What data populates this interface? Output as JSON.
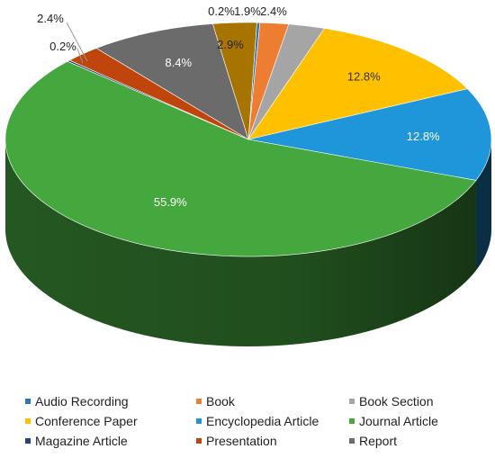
{
  "chart_data": {
    "type": "pie",
    "style": "3d",
    "slices": [
      {
        "name": "Audio Recording",
        "value": 0.2,
        "label": "0.2%",
        "color": "#2e75b6"
      },
      {
        "name": "Book",
        "value": 1.9,
        "label": "1.9%",
        "color": "#ed7d31"
      },
      {
        "name": "Book Section",
        "value": 2.4,
        "label": "2.4%",
        "color": "#a5a5a5"
      },
      {
        "name": "Conference Paper",
        "value": 12.8,
        "label": "12.8%",
        "color": "#ffc000"
      },
      {
        "name": "Encyclopedia Article",
        "value": 12.8,
        "label": "12.8%",
        "color": "#1f96d9"
      },
      {
        "name": "Journal Article",
        "value": 55.9,
        "label": "55.9%",
        "color": "#45a83f"
      },
      {
        "name": "Magazine Article",
        "value": 0.2,
        "label": "0.2%",
        "color": "#264478"
      },
      {
        "name": "Presentation",
        "value": 2.4,
        "label": "2.4%",
        "color": "#c0450c"
      },
      {
        "name": "Report",
        "value": 8.4,
        "label": "8.4%",
        "color": "#6b6b6b"
      },
      {
        "name": "",
        "value": 2.9,
        "label": "2.9%",
        "color": "#a77400"
      }
    ],
    "legend": {
      "position": "bottom",
      "items": [
        {
          "name": "Audio Recording",
          "color": "#2e75b6"
        },
        {
          "name": "Book",
          "color": "#ed7d31"
        },
        {
          "name": "Book Section",
          "color": "#a5a5a5"
        },
        {
          "name": "Conference Paper",
          "color": "#ffc000"
        },
        {
          "name": "Encyclopedia Article",
          "color": "#1f96d9"
        },
        {
          "name": "Journal Article",
          "color": "#45a83f"
        },
        {
          "name": "Magazine Article",
          "color": "#264478"
        },
        {
          "name": "Presentation",
          "color": "#c0450c"
        },
        {
          "name": "Report",
          "color": "#6b6b6b"
        }
      ]
    }
  }
}
